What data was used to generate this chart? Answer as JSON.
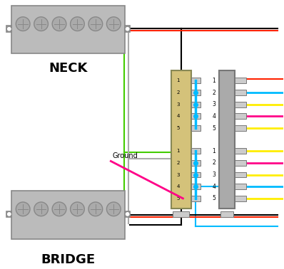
{
  "bg_color": "#ffffff",
  "neck_label": "NECK",
  "bridge_label": "BRIDGE",
  "ground_label": "Ground",
  "wire_colors": {
    "black": "#000000",
    "red": "#ff2200",
    "green": "#44cc00",
    "gray": "#aaaaaa",
    "cyan": "#00bbff",
    "yellow": "#ffee00",
    "magenta": "#ff0088"
  },
  "pickup_color": "#bbbbbb",
  "pickup_border": "#888888",
  "switch_color": "#d4c27a",
  "switch_border": "#888855",
  "term_color": "#aaaaaa",
  "term_border": "#777777",
  "term_tab_color": "#cccccc"
}
